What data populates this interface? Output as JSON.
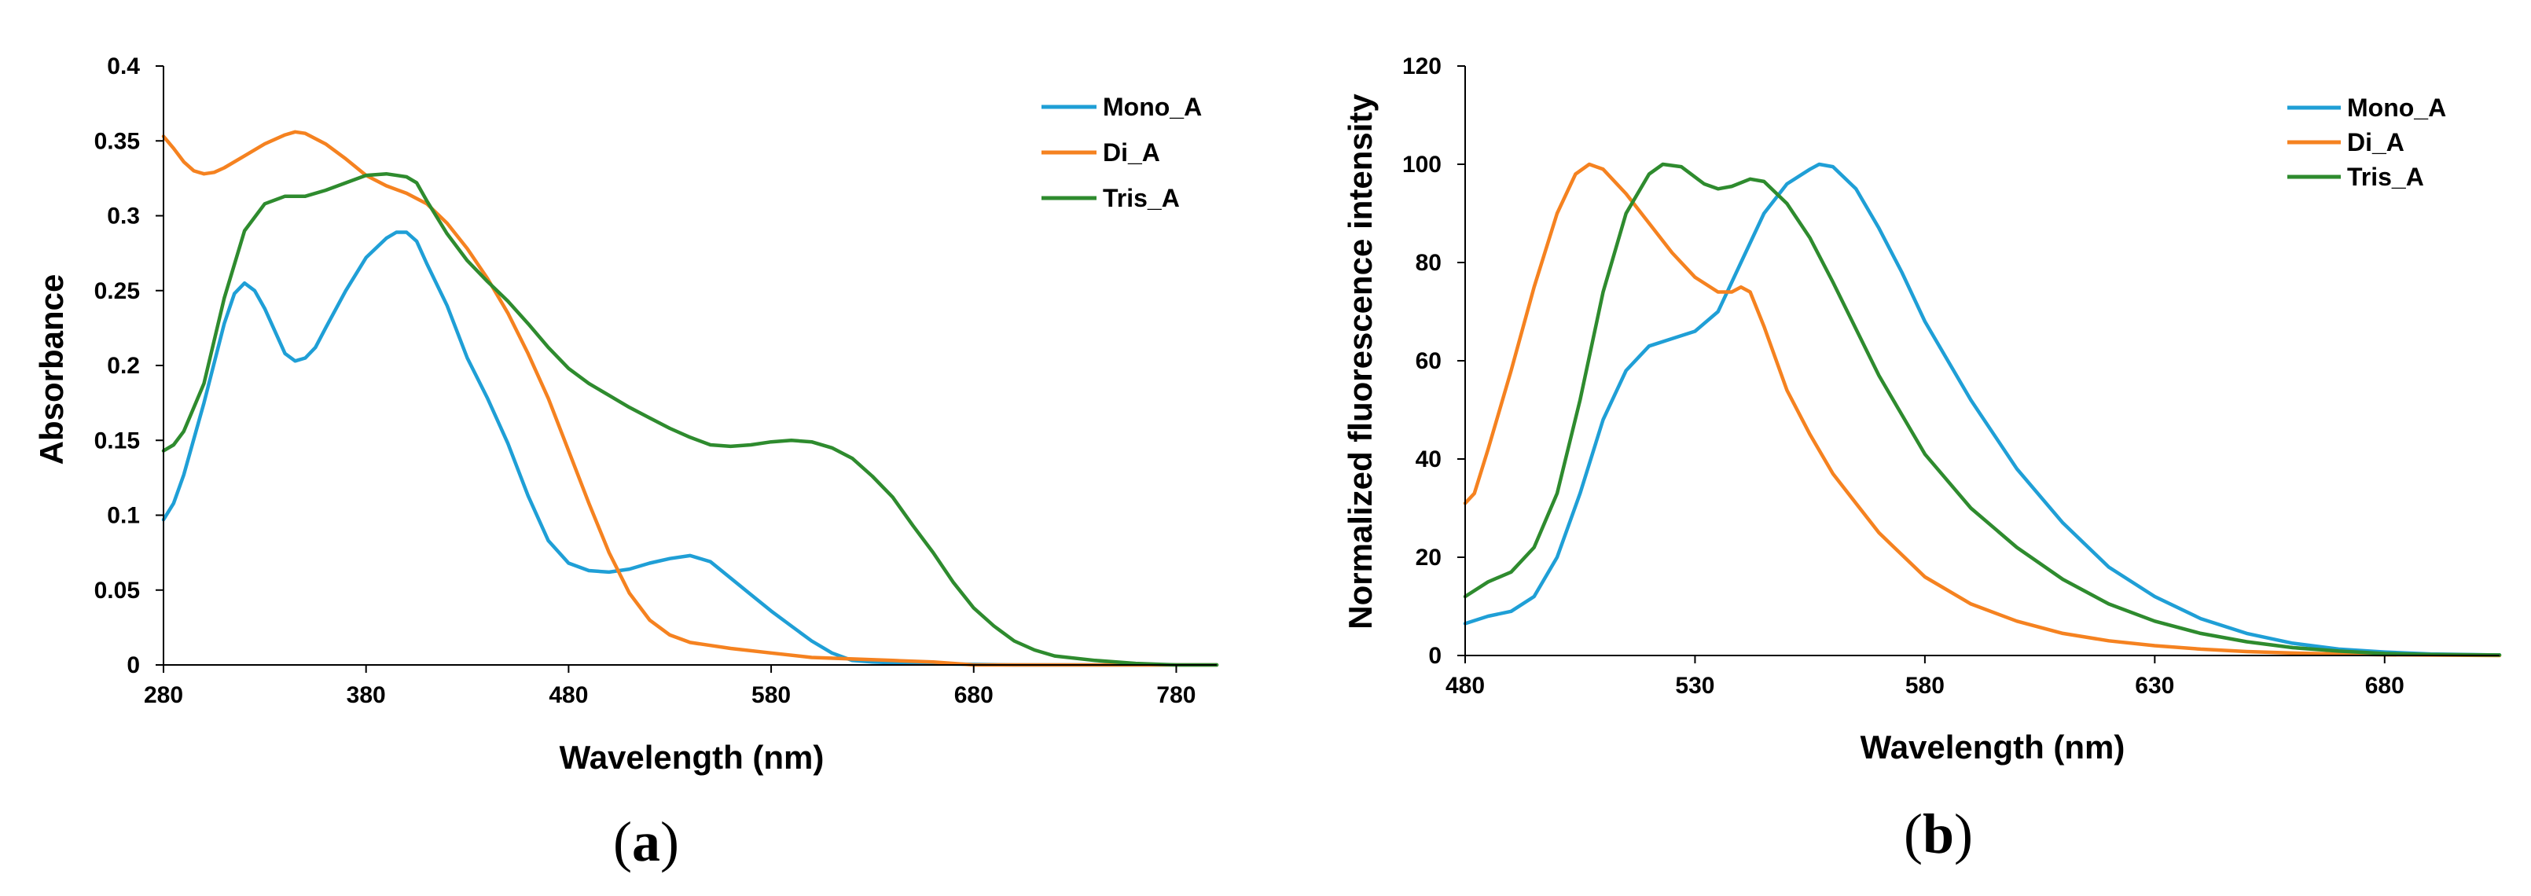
{
  "colors": {
    "mono": "#1f9fd6",
    "di": "#f58220",
    "tris": "#2e8b2e"
  },
  "chart_data": [
    {
      "panel": "a",
      "panel_label": "a",
      "type": "line",
      "title": "",
      "xlabel": "Wavelength (nm)",
      "ylabel": "Absorbance",
      "xlim": [
        280,
        800
      ],
      "ylim": [
        0,
        0.4
      ],
      "xticks": [
        280,
        380,
        480,
        580,
        680,
        780
      ],
      "xtick_labels": [
        "280",
        "380",
        "480",
        "580",
        "680",
        "780"
      ],
      "yticks": [
        0,
        0.05,
        0.1,
        0.15,
        0.2,
        0.25,
        0.3,
        0.35,
        0.4
      ],
      "ytick_labels": [
        "0",
        "0.05",
        "0.1",
        "0.15",
        "0.2",
        "0.25",
        "0.3",
        "0.35",
        "0.4"
      ],
      "grid": false,
      "legend": "top-right",
      "series": [
        {
          "name": "Mono_A",
          "color_key": "mono",
          "points": [
            [
              280,
              0.097
            ],
            [
              285,
              0.108
            ],
            [
              290,
              0.127
            ],
            [
              300,
              0.175
            ],
            [
              310,
              0.228
            ],
            [
              315,
              0.248
            ],
            [
              320,
              0.255
            ],
            [
              325,
              0.25
            ],
            [
              330,
              0.238
            ],
            [
              335,
              0.223
            ],
            [
              340,
              0.208
            ],
            [
              345,
              0.203
            ],
            [
              350,
              0.205
            ],
            [
              355,
              0.212
            ],
            [
              360,
              0.225
            ],
            [
              370,
              0.25
            ],
            [
              380,
              0.272
            ],
            [
              390,
              0.285
            ],
            [
              395,
              0.289
            ],
            [
              400,
              0.289
            ],
            [
              405,
              0.283
            ],
            [
              410,
              0.268
            ],
            [
              420,
              0.24
            ],
            [
              430,
              0.205
            ],
            [
              440,
              0.178
            ],
            [
              450,
              0.148
            ],
            [
              460,
              0.113
            ],
            [
              470,
              0.083
            ],
            [
              480,
              0.068
            ],
            [
              490,
              0.063
            ],
            [
              500,
              0.062
            ],
            [
              510,
              0.064
            ],
            [
              520,
              0.068
            ],
            [
              530,
              0.071
            ],
            [
              540,
              0.073
            ],
            [
              550,
              0.069
            ],
            [
              560,
              0.058
            ],
            [
              570,
              0.047
            ],
            [
              580,
              0.036
            ],
            [
              590,
              0.026
            ],
            [
              600,
              0.016
            ],
            [
              610,
              0.008
            ],
            [
              620,
              0.003
            ],
            [
              630,
              0.002
            ],
            [
              650,
              0.001
            ],
            [
              700,
              0.0
            ],
            [
              800,
              0.0
            ]
          ]
        },
        {
          "name": "Di_A",
          "color_key": "di",
          "points": [
            [
              280,
              0.353
            ],
            [
              285,
              0.345
            ],
            [
              290,
              0.336
            ],
            [
              295,
              0.33
            ],
            [
              300,
              0.328
            ],
            [
              305,
              0.329
            ],
            [
              310,
              0.332
            ],
            [
              320,
              0.34
            ],
            [
              330,
              0.348
            ],
            [
              340,
              0.354
            ],
            [
              345,
              0.356
            ],
            [
              350,
              0.355
            ],
            [
              360,
              0.348
            ],
            [
              370,
              0.338
            ],
            [
              380,
              0.327
            ],
            [
              390,
              0.32
            ],
            [
              400,
              0.315
            ],
            [
              410,
              0.308
            ],
            [
              420,
              0.295
            ],
            [
              430,
              0.278
            ],
            [
              440,
              0.258
            ],
            [
              450,
              0.235
            ],
            [
              460,
              0.208
            ],
            [
              470,
              0.178
            ],
            [
              480,
              0.143
            ],
            [
              490,
              0.108
            ],
            [
              500,
              0.075
            ],
            [
              510,
              0.048
            ],
            [
              520,
              0.03
            ],
            [
              530,
              0.02
            ],
            [
              540,
              0.015
            ],
            [
              550,
              0.013
            ],
            [
              560,
              0.011
            ],
            [
              580,
              0.008
            ],
            [
              600,
              0.005
            ],
            [
              620,
              0.004
            ],
            [
              640,
              0.003
            ],
            [
              660,
              0.002
            ],
            [
              680,
              0.0
            ],
            [
              800,
              0.0
            ]
          ]
        },
        {
          "name": "Tris_A",
          "color_key": "tris",
          "points": [
            [
              280,
              0.143
            ],
            [
              285,
              0.147
            ],
            [
              290,
              0.156
            ],
            [
              300,
              0.188
            ],
            [
              310,
              0.245
            ],
            [
              320,
              0.29
            ],
            [
              330,
              0.308
            ],
            [
              340,
              0.313
            ],
            [
              350,
              0.313
            ],
            [
              360,
              0.317
            ],
            [
              370,
              0.322
            ],
            [
              380,
              0.327
            ],
            [
              390,
              0.328
            ],
            [
              400,
              0.326
            ],
            [
              405,
              0.322
            ],
            [
              410,
              0.31
            ],
            [
              420,
              0.288
            ],
            [
              430,
              0.27
            ],
            [
              440,
              0.256
            ],
            [
              450,
              0.243
            ],
            [
              460,
              0.228
            ],
            [
              470,
              0.212
            ],
            [
              480,
              0.198
            ],
            [
              490,
              0.188
            ],
            [
              500,
              0.18
            ],
            [
              510,
              0.172
            ],
            [
              520,
              0.165
            ],
            [
              530,
              0.158
            ],
            [
              540,
              0.152
            ],
            [
              550,
              0.147
            ],
            [
              560,
              0.146
            ],
            [
              570,
              0.147
            ],
            [
              580,
              0.149
            ],
            [
              590,
              0.15
            ],
            [
              600,
              0.149
            ],
            [
              610,
              0.145
            ],
            [
              620,
              0.138
            ],
            [
              630,
              0.126
            ],
            [
              640,
              0.112
            ],
            [
              650,
              0.093
            ],
            [
              660,
              0.075
            ],
            [
              670,
              0.055
            ],
            [
              680,
              0.038
            ],
            [
              690,
              0.026
            ],
            [
              700,
              0.016
            ],
            [
              710,
              0.01
            ],
            [
              720,
              0.006
            ],
            [
              740,
              0.003
            ],
            [
              760,
              0.001
            ],
            [
              780,
              0.0
            ],
            [
              800,
              0.0
            ]
          ]
        }
      ]
    },
    {
      "panel": "b",
      "panel_label": "b",
      "type": "line",
      "title": "",
      "xlabel": "Wavelength (nm)",
      "ylabel": "Normalized fluorescence intensity",
      "xlim": [
        480,
        705
      ],
      "ylim": [
        0,
        120
      ],
      "xticks": [
        480,
        530,
        580,
        630,
        680
      ],
      "xtick_labels": [
        "480",
        "530",
        "580",
        "630",
        "680"
      ],
      "yticks": [
        0,
        20,
        40,
        60,
        80,
        100,
        120
      ],
      "ytick_labels": [
        "0",
        "20",
        "40",
        "60",
        "80",
        "100",
        "120"
      ],
      "grid": false,
      "legend": "top-right",
      "series": [
        {
          "name": "Mono_A",
          "color_key": "mono",
          "points": [
            [
              480,
              6.5
            ],
            [
              485,
              8
            ],
            [
              490,
              9
            ],
            [
              495,
              12
            ],
            [
              500,
              20
            ],
            [
              505,
              33
            ],
            [
              510,
              48
            ],
            [
              515,
              58
            ],
            [
              520,
              63
            ],
            [
              525,
              64.5
            ],
            [
              530,
              66
            ],
            [
              535,
              70
            ],
            [
              540,
              80
            ],
            [
              545,
              90
            ],
            [
              550,
              96
            ],
            [
              555,
              99
            ],
            [
              557,
              100
            ],
            [
              560,
              99.5
            ],
            [
              565,
              95
            ],
            [
              570,
              87
            ],
            [
              575,
              78
            ],
            [
              580,
              68
            ],
            [
              590,
              52
            ],
            [
              600,
              38
            ],
            [
              610,
              27
            ],
            [
              620,
              18
            ],
            [
              630,
              12
            ],
            [
              640,
              7.5
            ],
            [
              650,
              4.5
            ],
            [
              660,
              2.5
            ],
            [
              670,
              1.3
            ],
            [
              680,
              0.7
            ],
            [
              690,
              0.3
            ],
            [
              705,
              0.1
            ]
          ]
        },
        {
          "name": "Di_A",
          "color_key": "di",
          "points": [
            [
              480,
              31
            ],
            [
              482,
              33
            ],
            [
              485,
              42
            ],
            [
              490,
              58
            ],
            [
              495,
              75
            ],
            [
              500,
              90
            ],
            [
              504,
              98
            ],
            [
              507,
              100
            ],
            [
              510,
              99
            ],
            [
              515,
              94
            ],
            [
              520,
              88
            ],
            [
              525,
              82
            ],
            [
              530,
              77
            ],
            [
              535,
              74
            ],
            [
              538,
              74
            ],
            [
              540,
              75
            ],
            [
              542,
              74
            ],
            [
              545,
              67
            ],
            [
              550,
              54
            ],
            [
              555,
              45
            ],
            [
              560,
              37
            ],
            [
              570,
              25
            ],
            [
              580,
              16
            ],
            [
              590,
              10.5
            ],
            [
              600,
              7
            ],
            [
              610,
              4.5
            ],
            [
              620,
              3
            ],
            [
              630,
              2
            ],
            [
              640,
              1.3
            ],
            [
              650,
              0.8
            ],
            [
              660,
              0.5
            ],
            [
              670,
              0.3
            ],
            [
              680,
              0.15
            ],
            [
              705,
              0
            ]
          ]
        },
        {
          "name": "Tris_A",
          "color_key": "tris",
          "points": [
            [
              480,
              12
            ],
            [
              485,
              15
            ],
            [
              490,
              17
            ],
            [
              495,
              22
            ],
            [
              500,
              33
            ],
            [
              505,
              52
            ],
            [
              510,
              74
            ],
            [
              515,
              90
            ],
            [
              520,
              98
            ],
            [
              523,
              100
            ],
            [
              527,
              99.5
            ],
            [
              532,
              96
            ],
            [
              535,
              95
            ],
            [
              538,
              95.5
            ],
            [
              542,
              97
            ],
            [
              545,
              96.5
            ],
            [
              550,
              92
            ],
            [
              555,
              85
            ],
            [
              560,
              76
            ],
            [
              570,
              57
            ],
            [
              580,
              41
            ],
            [
              590,
              30
            ],
            [
              600,
              22
            ],
            [
              610,
              15.5
            ],
            [
              620,
              10.5
            ],
            [
              630,
              7
            ],
            [
              640,
              4.5
            ],
            [
              650,
              2.8
            ],
            [
              660,
              1.6
            ],
            [
              670,
              0.9
            ],
            [
              680,
              0.4
            ],
            [
              690,
              0.2
            ],
            [
              705,
              0.1
            ]
          ]
        }
      ]
    }
  ]
}
